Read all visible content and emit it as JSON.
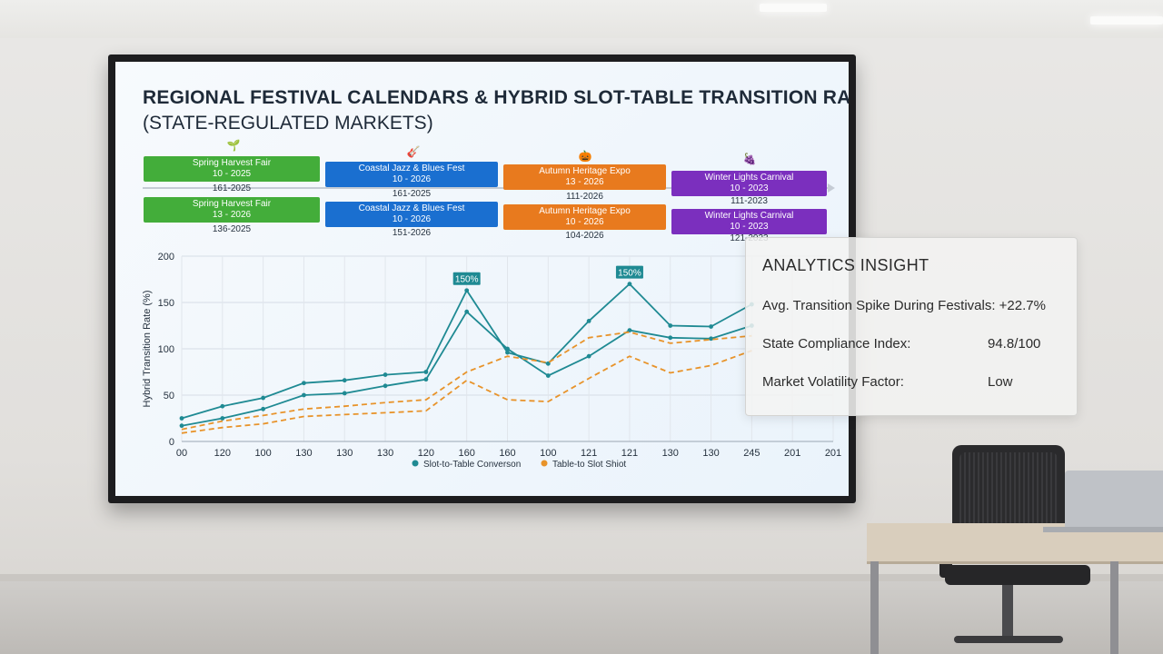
{
  "screen": {
    "title": "REGIONAL FESTIVAL CALENDARS & HYBRID SLOT-TABLE TRANSITION RATES",
    "subtitle": "(STATE-REGULATED MARKETS)"
  },
  "festivals": [
    {
      "name": "Spring Harvest Fair",
      "color": "#43ad3a",
      "icon": "sprout-icon",
      "glyph": "🌱",
      "row1_date": "10 - 2025",
      "row1_below": "161-2025",
      "row2_date": "13 - 2026",
      "row2_below": "136-2025"
    },
    {
      "name": "Coastal Jazz & Blues Fest",
      "color": "#1a6fd0",
      "icon": "guitar-icon",
      "glyph": "🎸",
      "row1_date": "10 - 2026",
      "row1_below": "161-2025",
      "row2_date": "10 - 2026",
      "row2_below": "151-2026"
    },
    {
      "name": "Autumn Heritage Expo",
      "color": "#e87a1e",
      "icon": "pumpkin-icon",
      "glyph": "🎃",
      "row1_date": "13 - 2026",
      "row1_below": "111-2026",
      "row2_date": "10 - 2026",
      "row2_below": "104-2026"
    },
    {
      "name": "Winter Lights Carnival",
      "color": "#7b2fbe",
      "icon": "grapes-icon",
      "glyph": "🍇",
      "row1_date": "10 - 2023",
      "row1_below": "111-2023",
      "row2_date": "10 - 2023",
      "row2_below": "121-2023"
    }
  ],
  "chart_data": {
    "type": "line",
    "title": "",
    "xlabel": "",
    "ylabel": "Hybrid Transition Rate (%)",
    "categories": [
      "00",
      "120",
      "100",
      "130",
      "130",
      "130",
      "120",
      "160",
      "160",
      "100",
      "121",
      "121",
      "130",
      "130",
      "245",
      "201",
      "201"
    ],
    "ylim": [
      0,
      200
    ],
    "yticks": [
      0,
      50,
      100,
      150,
      200
    ],
    "grid": true,
    "legend_position": "bottom",
    "series": [
      {
        "name": "Slot-to-Table Converson",
        "color": "#1f8a93",
        "style": "solid-dots",
        "values": [
          25,
          38,
          47,
          63,
          66,
          72,
          75,
          163,
          96,
          84,
          130,
          170,
          125,
          124,
          148,
          null,
          null
        ]
      },
      {
        "name": "",
        "color": "#1f8a93",
        "style": "solid-dots",
        "values": [
          17,
          25,
          35,
          50,
          52,
          60,
          67,
          140,
          100,
          71,
          92,
          120,
          112,
          111,
          125,
          null,
          null
        ]
      },
      {
        "name": "Table-to Slot Shiot",
        "color": "#e8932a",
        "style": "dashed",
        "values": [
          13,
          22,
          28,
          35,
          38,
          42,
          45,
          75,
          92,
          85,
          112,
          118,
          106,
          110,
          114,
          null,
          null
        ]
      },
      {
        "name": "",
        "color": "#e8932a",
        "style": "dashed",
        "values": [
          9,
          15,
          19,
          27,
          29,
          31,
          33,
          66,
          45,
          43,
          68,
          92,
          74,
          82,
          98,
          null,
          null
        ]
      }
    ],
    "annotations": [
      {
        "label": "150%",
        "index": 7,
        "value": 163
      },
      {
        "label": "150%",
        "index": 11,
        "value": 170
      }
    ]
  },
  "insight": {
    "title": "ANALYTICS INSIGHT",
    "rows": [
      {
        "label": "Avg. Transition Spike During Festivals: +22.7%",
        "value": ""
      },
      {
        "label": "State Compliance Index:",
        "value": "94.8/100"
      },
      {
        "label": "Market Volatility Factor:",
        "value": "Low"
      }
    ]
  }
}
